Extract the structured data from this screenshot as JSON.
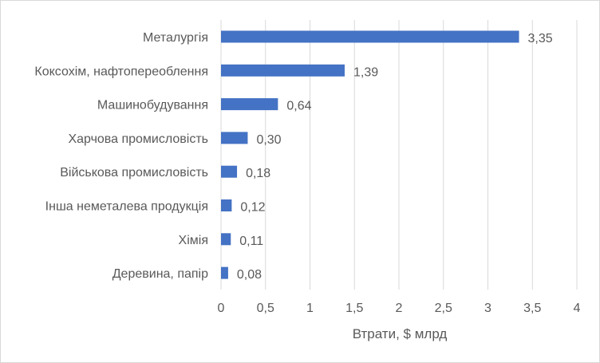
{
  "chart_data": {
    "type": "bar",
    "orientation": "horizontal",
    "categories": [
      "Металургія",
      "Коксохім, нафтопереоблення",
      "Машинобудування",
      "Харчова промисловість",
      "Військова промисловість",
      "Інша неметалева продукція",
      "Хімія",
      "Деревина, папір"
    ],
    "values": [
      3.35,
      1.39,
      0.64,
      0.3,
      0.18,
      0.12,
      0.11,
      0.08
    ],
    "value_labels": [
      "3,35",
      "1,39",
      "0,64",
      "0,30",
      "0,18",
      "0,12",
      "0,11",
      "0,08"
    ],
    "xlabel": "Втрати, $ млрд",
    "ylabel": "",
    "xlim": [
      0,
      4
    ],
    "x_ticks": [
      0,
      0.5,
      1,
      1.5,
      2,
      2.5,
      3,
      3.5,
      4
    ],
    "x_tick_labels": [
      "0",
      "0,5",
      "1",
      "1,5",
      "2",
      "2,5",
      "3",
      "3,5",
      "4"
    ],
    "grid": true,
    "legend": "none",
    "colors": {
      "bar": "#4472c4",
      "grid": "#d9d9d9",
      "text": "#595959"
    }
  }
}
